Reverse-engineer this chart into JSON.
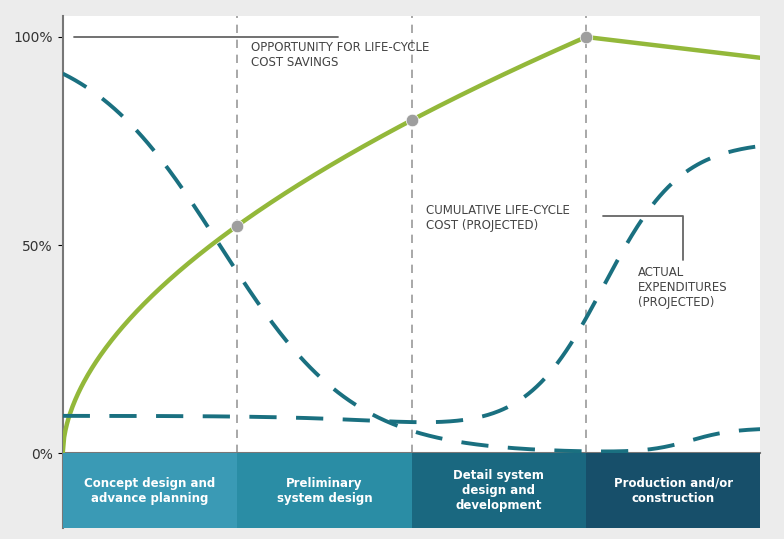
{
  "background_color": "#ececec",
  "plot_bg_color": "#ffffff",
  "ylim": [
    0.0,
    1.05
  ],
  "xlim": [
    0,
    4
  ],
  "phase_boundaries": [
    0,
    1,
    2,
    3,
    4
  ],
  "phase_labels": [
    "Concept design and\nadvance planning",
    "Preliminary\nsystem design",
    "Detail system\ndesign and\ndevelopment",
    "Production and/or\nconstruction"
  ],
  "phase_colors": [
    "#3a9ab5",
    "#2a8da5",
    "#1a6880",
    "#174f6a"
  ],
  "yticks": [
    0.0,
    0.5,
    1.0
  ],
  "ytick_labels": [
    "0%",
    "50%",
    "100%"
  ],
  "dashed_color": "#1a7080",
  "solid_color": "#93b83a",
  "marker_color": "#9e9e9e",
  "vline_color": "#999999",
  "ann_color": "#444444",
  "title_text": "OPPORTUNITY FOR LIFE-CYCLE\nCOST SAVINGS",
  "label_lifecycle": "CUMULATIVE LIFE-CYCLE\nCOST (PROJECTED)",
  "label_expenditures": "ACTUAL\nEXPENDITURES\n(PROJECTED)"
}
